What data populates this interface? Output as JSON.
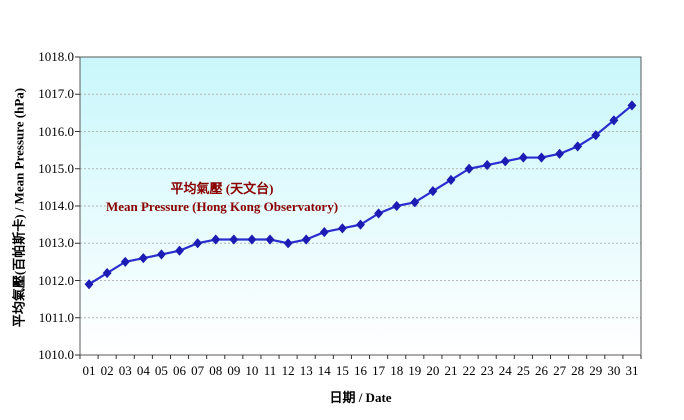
{
  "annotation": {
    "line1": "平均氣壓 (天文台)",
    "line2": "Mean Pressure (Hong Kong Observatory)",
    "color": "#8b0000"
  },
  "chart_data": {
    "type": "line",
    "title": "",
    "xlabel": "日期 / Date",
    "ylabel": "平均氣壓(百帕斯卡) / Mean Pressure (hPa)",
    "x": [
      "01",
      "02",
      "03",
      "04",
      "05",
      "06",
      "07",
      "08",
      "09",
      "10",
      "11",
      "12",
      "13",
      "14",
      "15",
      "16",
      "17",
      "18",
      "19",
      "20",
      "21",
      "22",
      "23",
      "24",
      "25",
      "26",
      "27",
      "28",
      "29",
      "30",
      "31"
    ],
    "series": [
      {
        "name": "平均氣壓 (天文台) / Mean Pressure (Hong Kong Observatory)",
        "values": [
          1011.9,
          1012.2,
          1012.5,
          1012.6,
          1012.7,
          1012.8,
          1013.0,
          1013.1,
          1013.1,
          1013.1,
          1013.1,
          1013.0,
          1013.1,
          1013.3,
          1013.4,
          1013.5,
          1013.8,
          1014.0,
          1014.1,
          1014.4,
          1014.7,
          1015.0,
          1015.1,
          1015.2,
          1015.3,
          1015.3,
          1015.4,
          1015.6,
          1015.9,
          1016.3,
          1016.7
        ]
      }
    ],
    "ylim": [
      1010,
      1018
    ],
    "y_tick_step": 1,
    "y_tick_labels": [
      "1018.0",
      "1017.0",
      "1016.0",
      "1015.0",
      "1014.0",
      "1013.0",
      "1012.0",
      "1011.0",
      "1010.0"
    ],
    "grid": "horizontal dashed gridlines at each 1.0 hPa",
    "legend_position": "none (red text annotation inside plot)",
    "marker": "diamond",
    "line_color": "#2a2ecf",
    "marker_color": "#1c1cb4",
    "plot_bg_gradient": [
      "#c9f7fb",
      "#ffffff"
    ]
  }
}
